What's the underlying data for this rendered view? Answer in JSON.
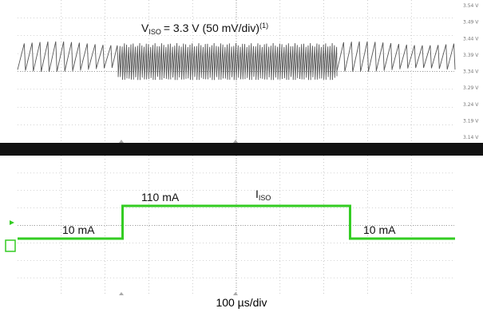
{
  "chart_data": [
    {
      "type": "line",
      "title": "",
      "series": [
        {
          "name": "",
          "annotation": "= 3.3 V (50 mV/div)",
          "note": "(1)"
        }
      ],
      "label_main": "V",
      "label_sub": "ISO",
      "y_ticks": [
        "3.54 V",
        "3.49 V",
        "3.44 V",
        "3.39 V",
        "3.34 V",
        "3.29 V",
        "3.24 V",
        "3.19 V",
        "3.14 V"
      ],
      "ylim": [
        3.14,
        3.54
      ],
      "segments": [
        {
          "t_div": [
            0,
            2.3
          ],
          "period_div": 0.18,
          "high": 3.425,
          "low": 3.345
        },
        {
          "t_div": [
            2.3,
            7.3
          ],
          "period_div": 0.05,
          "high": 3.42,
          "low": 3.32
        },
        {
          "t_div": [
            7.3,
            10
          ],
          "period_div": 0.18,
          "high": 3.425,
          "low": 3.345
        }
      ]
    },
    {
      "type": "line",
      "label_main": "I",
      "label_sub": "ISO",
      "x_div": [
        0,
        2.4,
        2.4,
        7.6,
        7.6,
        10
      ],
      "current_mA": [
        10,
        10,
        110,
        110,
        10,
        10
      ],
      "annotations": [
        {
          "text": "10 mA",
          "x_div": 1.3,
          "y_mA": 10
        },
        {
          "text": "110 mA",
          "x_div": 3.3,
          "y_mA": 110
        },
        {
          "text": "10 mA",
          "x_div": 8.4,
          "y_mA": 10
        }
      ],
      "trace_color": "#33cc22"
    }
  ],
  "xlabel": "100 µs/div",
  "colors": {
    "bezel": "#111111",
    "grid": "#9a9a9a",
    "voltage_trace": "#555555",
    "current_trace": "#33cc22"
  }
}
